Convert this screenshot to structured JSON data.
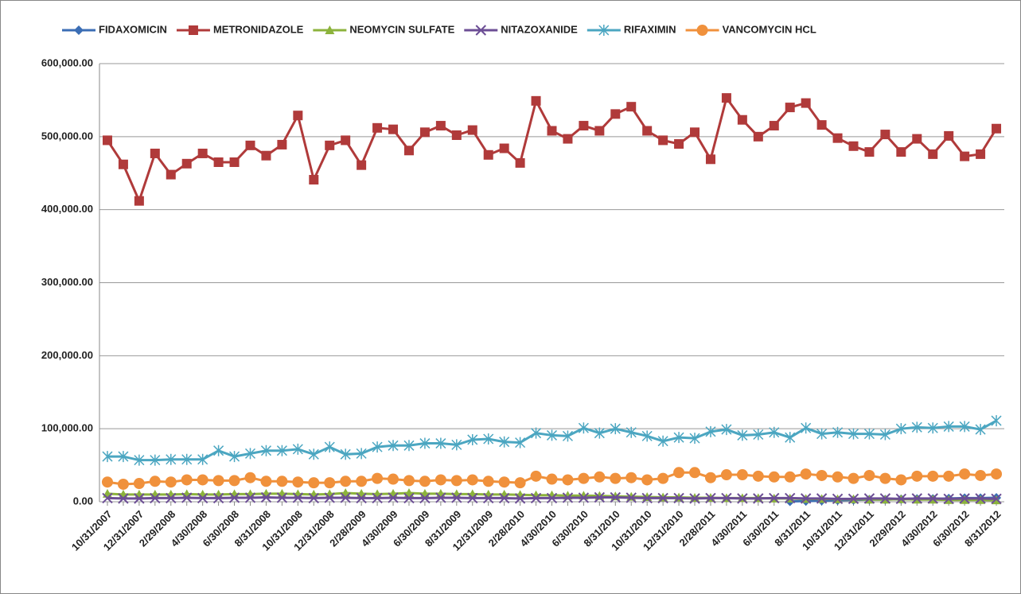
{
  "chart_data": {
    "type": "line",
    "categories": [
      "10/31/2007",
      null,
      "12/31/2007",
      null,
      "2/29/2008",
      null,
      "4/30/2008",
      null,
      "6/30/2008",
      null,
      "8/31/2008",
      null,
      "10/31/2008",
      null,
      "12/31/2008",
      null,
      "2/28/2009",
      null,
      "4/30/2009",
      null,
      "6/30/2009",
      null,
      "8/31/2009",
      null,
      "12/31/2009",
      null,
      "2/28/2010",
      null,
      "4/30/2010",
      null,
      "6/30/2010",
      null,
      "8/31/2010",
      null,
      "10/31/2010",
      null,
      "12/31/2010",
      null,
      "2/28/2011",
      null,
      "4/30/2011",
      null,
      "6/30/2011",
      null,
      "8/31/2011",
      null,
      "10/31/2011",
      null,
      "12/31/2011",
      null,
      "2/29/2012",
      null,
      "4/30/2012",
      null,
      "6/30/2012",
      null,
      "8/31/2012"
    ],
    "series": [
      {
        "name": "FIDAXOMICIN",
        "color": "#3b6eb5",
        "values": [
          null,
          null,
          null,
          null,
          null,
          null,
          null,
          null,
          null,
          null,
          null,
          null,
          null,
          null,
          null,
          null,
          null,
          null,
          null,
          null,
          null,
          null,
          null,
          null,
          null,
          null,
          null,
          null,
          null,
          null,
          null,
          null,
          null,
          null,
          null,
          null,
          null,
          null,
          null,
          null,
          null,
          null,
          null,
          500,
          1000,
          1500,
          2000,
          2500,
          3000,
          3000,
          3500,
          4000,
          4000,
          4500,
          5000,
          5000,
          5500
        ]
      },
      {
        "name": "METRONIDAZOLE",
        "color": "#b03a3a",
        "values": [
          495000,
          462000,
          412000,
          477000,
          448000,
          463000,
          477000,
          465000,
          465000,
          488000,
          474000,
          489000,
          529000,
          441000,
          488000,
          495000,
          461000,
          512000,
          510000,
          481000,
          506000,
          515000,
          502000,
          509000,
          475000,
          484000,
          464000,
          549000,
          508000,
          497000,
          515000,
          508000,
          531000,
          541000,
          508000,
          495000,
          490000,
          506000,
          469000,
          553000,
          523000,
          500000,
          515000,
          540000,
          546000,
          516000,
          498000,
          487000,
          479000,
          503000,
          479000,
          497000,
          476000,
          501000,
          473000,
          476000,
          511000
        ]
      },
      {
        "name": "NEOMYCIN SULFATE",
        "color": "#8cb33c",
        "values": [
          11000,
          10000,
          10000,
          10000,
          10000,
          10500,
          10000,
          10000,
          10500,
          10500,
          11000,
          11000,
          10500,
          10000,
          10500,
          12000,
          11000,
          10500,
          11000,
          12000,
          11000,
          11000,
          10500,
          10500,
          10000,
          10000,
          9500,
          9000,
          9000,
          8500,
          8500,
          8000,
          7500,
          7000,
          6500,
          6000,
          6000,
          5500,
          5500,
          5000,
          5000,
          5000,
          4500,
          4500,
          4000,
          4000,
          3500,
          3500,
          3000,
          3000,
          3500,
          3000,
          3000,
          2500,
          2500,
          2500,
          2000
        ]
      },
      {
        "name": "NITAZOXANIDE",
        "color": "#6c4e95",
        "values": [
          5000,
          4500,
          4500,
          5000,
          5000,
          5500,
          5000,
          5000,
          5500,
          5500,
          6000,
          5500,
          5500,
          5000,
          5500,
          5500,
          5000,
          5000,
          5500,
          5000,
          5000,
          5500,
          5500,
          5000,
          5000,
          5000,
          4500,
          5000,
          5000,
          5500,
          5500,
          6000,
          6000,
          5500,
          5000,
          5000,
          5000,
          4500,
          5000,
          5000,
          4500,
          4500,
          5000,
          5000,
          4500,
          4500,
          4000,
          4000,
          4500,
          4500,
          4000,
          4500,
          4500,
          4000,
          4500,
          4500,
          4000
        ]
      },
      {
        "name": "RIFAXIMIN",
        "color": "#4ba6c1",
        "values": [
          62000,
          62000,
          57000,
          57000,
          58000,
          58000,
          58000,
          70000,
          62000,
          66000,
          70000,
          70000,
          72000,
          65000,
          75000,
          65000,
          66000,
          75000,
          77000,
          77000,
          80000,
          80000,
          78000,
          85000,
          86000,
          82000,
          81000,
          94000,
          91000,
          90000,
          101000,
          94000,
          100000,
          95000,
          90000,
          83000,
          88000,
          87000,
          96000,
          99000,
          91000,
          92000,
          95000,
          88000,
          101000,
          93000,
          95000,
          93000,
          93000,
          92000,
          100000,
          102000,
          101000,
          103000,
          103000,
          99000,
          111000
        ]
      },
      {
        "name": "VANCOMYCIN HCL",
        "color": "#f0913c",
        "values": [
          27000,
          24000,
          25000,
          28000,
          27000,
          30000,
          30000,
          29000,
          29000,
          33000,
          28000,
          28000,
          27000,
          26000,
          26000,
          28000,
          28000,
          32000,
          31000,
          29000,
          28000,
          30000,
          29000,
          30000,
          28000,
          27000,
          26000,
          35000,
          31000,
          30000,
          32000,
          34000,
          32000,
          33000,
          30000,
          32000,
          40000,
          40000,
          33000,
          37000,
          37000,
          35000,
          34000,
          34000,
          38000,
          36000,
          34000,
          32000,
          36000,
          32000,
          30000,
          35000,
          35000,
          35000,
          38000,
          36000,
          38000
        ]
      }
    ],
    "ylim": [
      0,
      600000
    ],
    "yticks": [
      {
        "value": 0,
        "label": "0.00"
      },
      {
        "value": 100000,
        "label": "100,000.00"
      },
      {
        "value": 200000,
        "label": "200,000.00"
      },
      {
        "value": 300000,
        "label": "300,000.00"
      },
      {
        "value": 400000,
        "label": "400,000.00"
      },
      {
        "value": 500000,
        "label": "500,000.00"
      },
      {
        "value": 600000,
        "label": "600,000.00"
      }
    ],
    "grid": true,
    "legend": "top"
  }
}
